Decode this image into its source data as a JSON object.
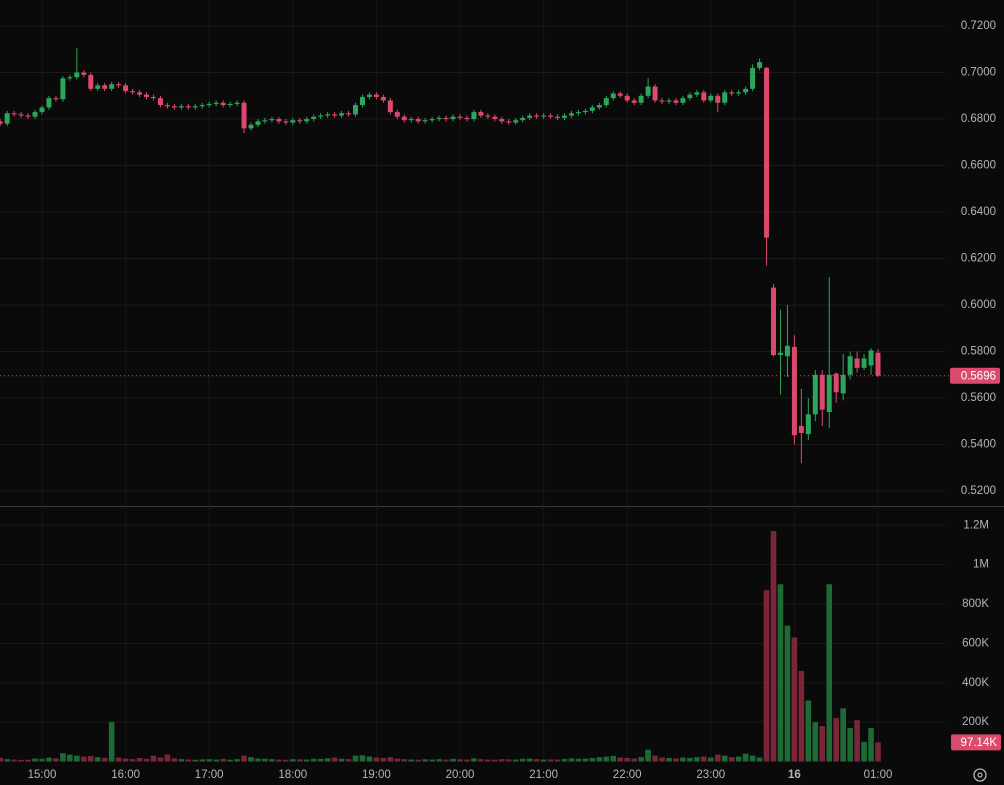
{
  "chart_data": {
    "type": "candlestick",
    "categories": [
      null,
      null,
      null,
      null,
      null,
      null,
      "15:00",
      null,
      null,
      null,
      null,
      null,
      null,
      null,
      null,
      null,
      null,
      null,
      "16:00",
      null,
      null,
      null,
      null,
      null,
      null,
      null,
      null,
      null,
      null,
      null,
      "17:00",
      null,
      null,
      null,
      null,
      null,
      null,
      null,
      null,
      null,
      null,
      null,
      "18:00",
      null,
      null,
      null,
      null,
      null,
      null,
      null,
      null,
      null,
      null,
      null,
      "19:00",
      null,
      null,
      null,
      null,
      null,
      null,
      null,
      null,
      null,
      null,
      null,
      "20:00",
      null,
      null,
      null,
      null,
      null,
      null,
      null,
      null,
      null,
      null,
      null,
      "21:00",
      null,
      null,
      null,
      null,
      null,
      null,
      null,
      null,
      null,
      null,
      null,
      "22:00",
      null,
      null,
      null,
      null,
      null,
      null,
      null,
      null,
      null,
      null,
      null,
      "23:00",
      null,
      null,
      null,
      null,
      null,
      null,
      null,
      null,
      null,
      null,
      null,
      "16",
      null,
      null,
      null,
      null,
      null,
      null,
      null,
      null,
      null,
      null,
      null,
      "01:00"
    ],
    "open": [
      0.679,
      0.678,
      0.6825,
      0.682,
      0.6815,
      0.681,
      0.683,
      0.685,
      0.689,
      0.6885,
      0.6975,
      0.698,
      0.7,
      0.699,
      0.693,
      0.6945,
      0.693,
      0.695,
      0.6945,
      0.692,
      0.6915,
      0.6905,
      0.6895,
      0.689,
      0.686,
      0.6855,
      0.685,
      0.6855,
      0.685,
      0.6855,
      0.686,
      0.6865,
      0.687,
      0.686,
      0.6865,
      0.687,
      0.676,
      0.6775,
      0.679,
      0.6795,
      0.68,
      0.679,
      0.6785,
      0.6795,
      0.679,
      0.68,
      0.681,
      0.6815,
      0.682,
      0.6815,
      0.6825,
      0.682,
      0.686,
      0.6895,
      0.6905,
      0.6895,
      0.688,
      0.683,
      0.681,
      0.6795,
      0.68,
      0.679,
      0.6795,
      0.68,
      0.6805,
      0.68,
      0.681,
      0.6805,
      0.68,
      0.683,
      0.6815,
      0.681,
      0.68,
      0.679,
      0.6785,
      0.6795,
      0.6805,
      0.6815,
      0.681,
      0.6815,
      0.681,
      0.6805,
      0.6815,
      0.6825,
      0.683,
      0.6835,
      0.685,
      0.686,
      0.689,
      0.691,
      0.69,
      0.688,
      0.687,
      0.69,
      0.694,
      0.688,
      0.6875,
      0.688,
      0.687,
      0.689,
      0.6905,
      0.6915,
      0.688,
      0.69,
      0.687,
      0.6915,
      0.691,
      0.6915,
      0.693,
      0.702,
      0.702,
      0.6075,
      0.5785,
      0.578,
      0.582,
      0.548,
      0.5445,
      0.553,
      0.57,
      0.554,
      0.5705,
      0.562,
      0.57,
      0.577,
      0.573,
      0.574,
      0.5795
    ],
    "high": [
      0.68,
      0.6835,
      0.6835,
      0.683,
      0.6825,
      0.684,
      0.686,
      0.69,
      0.69,
      0.6985,
      0.699,
      0.7105,
      0.701,
      0.7,
      0.6955,
      0.6955,
      0.696,
      0.696,
      0.6955,
      0.693,
      0.6925,
      0.6915,
      0.6905,
      0.69,
      0.687,
      0.6865,
      0.6865,
      0.6865,
      0.6865,
      0.687,
      0.6875,
      0.688,
      0.688,
      0.6875,
      0.688,
      0.688,
      0.6785,
      0.68,
      0.6805,
      0.681,
      0.681,
      0.68,
      0.6805,
      0.6805,
      0.681,
      0.682,
      0.6825,
      0.683,
      0.683,
      0.6835,
      0.6835,
      0.687,
      0.6905,
      0.6915,
      0.6915,
      0.6905,
      0.689,
      0.684,
      0.682,
      0.681,
      0.681,
      0.6805,
      0.681,
      0.6815,
      0.6815,
      0.682,
      0.682,
      0.6815,
      0.684,
      0.684,
      0.6825,
      0.682,
      0.681,
      0.68,
      0.6805,
      0.6815,
      0.6825,
      0.6825,
      0.6825,
      0.6825,
      0.682,
      0.6825,
      0.6835,
      0.684,
      0.6845,
      0.686,
      0.687,
      0.69,
      0.692,
      0.692,
      0.691,
      0.689,
      0.691,
      0.6975,
      0.695,
      0.689,
      0.689,
      0.689,
      0.69,
      0.6915,
      0.6925,
      0.6925,
      0.691,
      0.691,
      0.6925,
      0.6925,
      0.6925,
      0.694,
      0.7035,
      0.706,
      0.7025,
      0.609,
      0.598,
      0.6,
      0.587,
      0.564,
      0.56,
      0.572,
      0.572,
      0.612,
      0.571,
      0.579,
      0.58,
      0.58,
      0.579,
      0.5815,
      0.581
    ],
    "low": [
      0.677,
      0.677,
      0.681,
      0.6805,
      0.68,
      0.68,
      0.682,
      0.684,
      0.6875,
      0.6875,
      0.6965,
      0.697,
      0.698,
      0.692,
      0.692,
      0.692,
      0.692,
      0.6935,
      0.691,
      0.6905,
      0.6895,
      0.6885,
      0.688,
      0.685,
      0.6845,
      0.684,
      0.684,
      0.684,
      0.684,
      0.6845,
      0.685,
      0.6855,
      0.685,
      0.685,
      0.6855,
      0.674,
      0.675,
      0.6765,
      0.678,
      0.6785,
      0.678,
      0.6775,
      0.6775,
      0.678,
      0.678,
      0.679,
      0.68,
      0.6805,
      0.6805,
      0.6805,
      0.681,
      0.681,
      0.685,
      0.6885,
      0.6885,
      0.687,
      0.682,
      0.68,
      0.6785,
      0.6785,
      0.678,
      0.678,
      0.6785,
      0.679,
      0.679,
      0.679,
      0.6795,
      0.679,
      0.679,
      0.6805,
      0.68,
      0.679,
      0.678,
      0.6775,
      0.6775,
      0.6785,
      0.6795,
      0.68,
      0.68,
      0.68,
      0.6795,
      0.6795,
      0.6805,
      0.6815,
      0.682,
      0.6825,
      0.684,
      0.685,
      0.688,
      0.689,
      0.687,
      0.686,
      0.686,
      0.689,
      0.687,
      0.6865,
      0.6865,
      0.686,
      0.686,
      0.688,
      0.6895,
      0.687,
      0.687,
      0.683,
      0.686,
      0.69,
      0.69,
      0.6905,
      0.692,
      0.701,
      0.617,
      0.578,
      0.5615,
      0.569,
      0.54,
      0.532,
      0.542,
      0.55,
      0.548,
      0.547,
      0.558,
      0.559,
      0.568,
      0.571,
      0.572,
      0.57,
      0.569
    ],
    "close": [
      0.678,
      0.6825,
      0.682,
      0.6815,
      0.681,
      0.683,
      0.685,
      0.689,
      0.6885,
      0.6975,
      0.698,
      0.7,
      0.699,
      0.693,
      0.6945,
      0.693,
      0.695,
      0.6945,
      0.692,
      0.6915,
      0.6905,
      0.6895,
      0.689,
      0.686,
      0.6855,
      0.685,
      0.6855,
      0.685,
      0.6855,
      0.686,
      0.6865,
      0.687,
      0.686,
      0.6865,
      0.687,
      0.676,
      0.6775,
      0.679,
      0.6795,
      0.68,
      0.679,
      0.6785,
      0.6795,
      0.679,
      0.68,
      0.681,
      0.6815,
      0.682,
      0.6815,
      0.6825,
      0.682,
      0.686,
      0.6895,
      0.6905,
      0.6895,
      0.688,
      0.683,
      0.681,
      0.6795,
      0.68,
      0.679,
      0.6795,
      0.68,
      0.6805,
      0.68,
      0.681,
      0.6805,
      0.68,
      0.683,
      0.6815,
      0.681,
      0.68,
      0.679,
      0.6785,
      0.6795,
      0.6805,
      0.6815,
      0.681,
      0.6815,
      0.681,
      0.6805,
      0.6815,
      0.6825,
      0.683,
      0.6835,
      0.685,
      0.686,
      0.689,
      0.691,
      0.69,
      0.688,
      0.687,
      0.69,
      0.694,
      0.688,
      0.6875,
      0.688,
      0.687,
      0.689,
      0.6905,
      0.6915,
      0.688,
      0.69,
      0.687,
      0.6915,
      0.691,
      0.6915,
      0.693,
      0.702,
      0.7045,
      0.629,
      0.5785,
      0.5795,
      0.5825,
      0.544,
      0.545,
      0.553,
      0.57,
      0.555,
      0.57,
      0.5625,
      0.57,
      0.578,
      0.573,
      0.577,
      0.5805,
      0.5696
    ],
    "volume": [
      18000,
      12000,
      10000,
      8000,
      9000,
      15000,
      14000,
      20000,
      16000,
      42000,
      35000,
      30000,
      25000,
      28000,
      22000,
      18000,
      200000,
      20000,
      15000,
      12000,
      18000,
      14000,
      30000,
      20000,
      35000,
      16000,
      12000,
      10000,
      9000,
      11000,
      12000,
      10000,
      14000,
      9000,
      12000,
      30000,
      22000,
      15000,
      14000,
      12000,
      10000,
      9000,
      12000,
      11000,
      10000,
      14000,
      13000,
      16000,
      20000,
      14000,
      12000,
      30000,
      32000,
      25000,
      20000,
      18000,
      22000,
      15000,
      12000,
      10000,
      9000,
      11000,
      10000,
      12000,
      10000,
      13000,
      11000,
      10000,
      16000,
      12000,
      10000,
      9000,
      12000,
      11000,
      10000,
      14000,
      15000,
      12000,
      10000,
      11000,
      10000,
      13000,
      16000,
      14000,
      15000,
      18000,
      22000,
      25000,
      28000,
      20000,
      18000,
      15000,
      22000,
      60000,
      30000,
      20000,
      18000,
      15000,
      20000,
      18000,
      22000,
      25000,
      20000,
      35000,
      30000,
      22000,
      25000,
      40000,
      30000,
      20000,
      870000,
      1170000,
      900000,
      690000,
      630000,
      460000,
      310000,
      200000,
      180000,
      900000,
      220000,
      270000,
      170000,
      210000,
      100000,
      170000,
      97140
    ],
    "volume_value_labels": [
      null,
      null,
      null,
      null,
      null,
      null,
      null,
      null,
      null,
      null,
      null,
      null,
      null,
      null,
      null,
      null,
      null,
      null,
      null,
      null,
      null,
      null,
      null,
      null,
      null,
      null,
      null,
      null,
      null,
      null,
      null,
      null,
      null,
      null,
      null,
      null,
      null,
      null,
      null,
      null,
      null,
      null,
      null,
      null,
      null,
      null,
      null,
      null,
      null,
      null,
      null,
      null,
      null,
      null,
      null,
      null,
      null,
      null,
      null,
      null,
      null,
      null,
      null,
      null,
      null,
      null,
      null,
      null,
      null,
      null,
      null,
      null,
      null,
      null,
      null,
      null,
      null,
      null,
      null,
      null,
      null,
      null,
      null,
      null,
      null,
      null,
      null,
      null,
      null,
      null,
      null,
      null,
      null,
      null,
      null,
      null,
      null,
      null,
      null,
      null,
      null,
      null,
      null,
      null,
      null,
      null,
      null,
      null,
      null,
      null,
      null,
      null,
      null,
      null,
      null,
      null,
      null,
      null,
      null,
      null,
      null,
      null,
      null,
      null,
      null,
      null,
      "97.14K"
    ],
    "ylim": [
      0.514,
      0.7312
    ],
    "yticks": [
      {
        "value": 0.52,
        "label": "0.5200"
      },
      {
        "value": 0.54,
        "label": "0.5400"
      },
      {
        "value": 0.56,
        "label": "0.5600"
      },
      {
        "value": 0.58,
        "label": "0.5800"
      },
      {
        "value": 0.6,
        "label": "0.6000"
      },
      {
        "value": 0.62,
        "label": "0.6200"
      },
      {
        "value": 0.64,
        "label": "0.6400"
      },
      {
        "value": 0.66,
        "label": "0.6600"
      },
      {
        "value": 0.68,
        "label": "0.6800"
      },
      {
        "value": 0.7,
        "label": "0.7000"
      },
      {
        "value": 0.72,
        "label": "0.7200"
      }
    ],
    "volume_ylim": [
      0,
      1290000
    ],
    "volume_ticks": [
      {
        "value": 200000,
        "label": "200K"
      },
      {
        "value": 400000,
        "label": "400K"
      },
      {
        "value": 600000,
        "label": "600K"
      },
      {
        "value": 800000,
        "label": "800K"
      },
      {
        "value": 1000000,
        "label": "1M"
      },
      {
        "value": 1200000,
        "label": "1.2M"
      }
    ],
    "grid": true,
    "up_color": "#2ba65a",
    "down_color": "#db4a6c",
    "volume_up_color": "#1d6a35",
    "volume_down_color": "#7a2538"
  }
}
